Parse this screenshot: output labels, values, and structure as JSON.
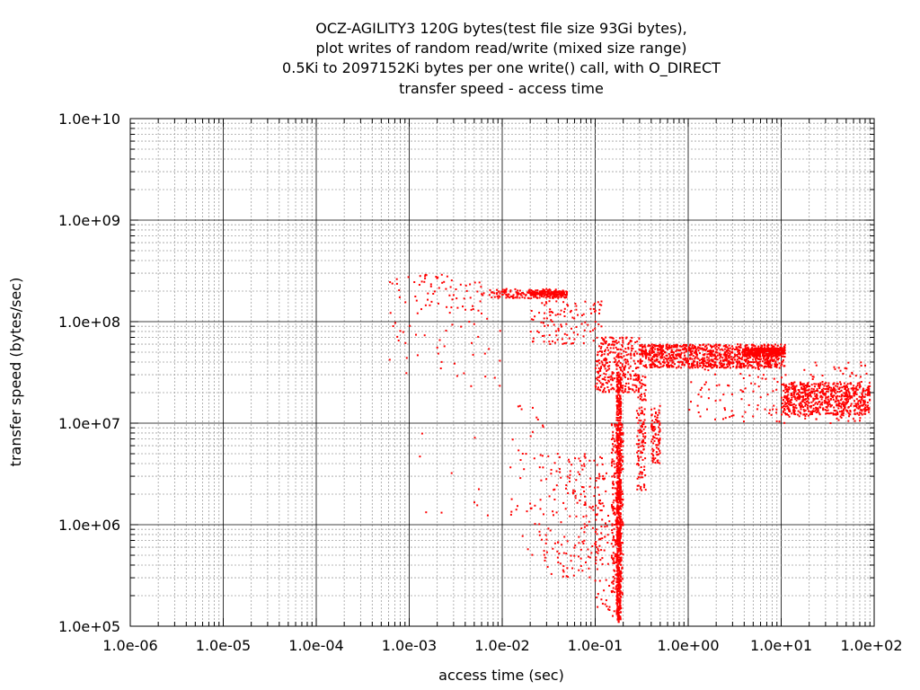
{
  "chart_data": {
    "type": "scatter",
    "title_lines": [
      "OCZ-AGILITY3 120G bytes(test file size 93Gi bytes),",
      "plot writes of random read/write (mixed size range)",
      "0.5Ki to 2097152Ki bytes per one write() call, with O_DIRECT",
      "transfer speed - access time"
    ],
    "xlabel": "access time (sec)",
    "ylabel": "transfer speed (bytes/sec)",
    "x_scale": "log",
    "y_scale": "log",
    "xlim": [
      1e-06,
      100
    ],
    "ylim": [
      100000.0,
      10000000000.0
    ],
    "x_tick_labels": [
      "1.0e-06",
      "1.0e-05",
      "1.0e-04",
      "1.0e-03",
      "1.0e-02",
      "1.0e-01",
      "1.0e+00",
      "1.0e+01",
      "1.0e+02"
    ],
    "y_tick_labels": [
      "1.0e+05",
      "1.0e+06",
      "1.0e+07",
      "1.0e+08",
      "1.0e+09",
      "1.0e+10"
    ],
    "grid": true,
    "legend": "none",
    "point_color": "#ff0000",
    "series": [
      {
        "clusters": [
          {
            "x": [
              0.0006,
              0.006
            ],
            "y": [
              120000000.0,
              300000000.0
            ],
            "count": 70
          },
          {
            "x": [
              0.006,
              0.05
            ],
            "y": [
              170000000.0,
              210000000.0
            ],
            "count": 160
          },
          {
            "x": [
              0.02,
              0.05
            ],
            "y": [
              180000000.0,
              200000000.0
            ],
            "count": 140
          },
          {
            "x": [
              0.02,
              0.12
            ],
            "y": [
              60000000.0,
              160000000.0
            ],
            "count": 110
          },
          {
            "x": [
              0.1,
              0.3
            ],
            "y": [
              20000000.0,
              70000000.0
            ],
            "count": 320
          },
          {
            "x": [
              0.3,
              11
            ],
            "y": [
              35000000.0,
              60000000.0
            ],
            "count": 1000
          },
          {
            "x": [
              4,
              11
            ],
            "y": [
              45000000.0,
              55000000.0
            ],
            "count": 300
          },
          {
            "x": [
              10,
              90
            ],
            "y": [
              12000000.0,
              25000000.0
            ],
            "count": 650
          },
          {
            "x": [
              1,
              90
            ],
            "y": [
              10000000.0,
              40000000.0
            ],
            "count": 180
          },
          {
            "x": [
              0.17,
              0.19
            ],
            "y": [
              110000.0,
              30000000.0
            ],
            "count": 700
          },
          {
            "x": [
              0.15,
              0.2
            ],
            "y": [
              200000.0,
              10000000.0
            ],
            "count": 250
          },
          {
            "x": [
              0.28,
              0.35
            ],
            "y": [
              2000000.0,
              30000000.0
            ],
            "count": 130
          },
          {
            "x": [
              0.4,
              0.5
            ],
            "y": [
              4000000.0,
              15000000.0
            ],
            "count": 90
          },
          {
            "x": [
              0.025,
              0.12
            ],
            "y": [
              300000.0,
              5000000.0
            ],
            "count": 170
          },
          {
            "x": [
              0.1,
              0.17
            ],
            "y": [
              120000.0,
              4000000.0
            ],
            "count": 80
          },
          {
            "x": [
              0.012,
              0.03
            ],
            "y": [
              500000.0,
              15000000.0
            ],
            "count": 40
          },
          {
            "x": [
              0.0005,
              0.01
            ],
            "y": [
              20000000.0,
              120000000.0
            ],
            "count": 40
          },
          {
            "x": [
              0.001,
              0.01
            ],
            "y": [
              1000000.0,
              10000000.0
            ],
            "count": 10
          }
        ]
      }
    ]
  }
}
